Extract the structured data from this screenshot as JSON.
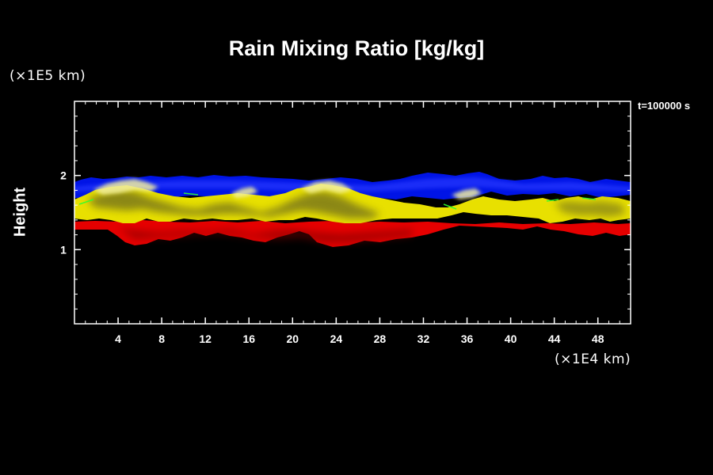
{
  "chart_data": {
    "type": "heatmap",
    "title": "Rain Mixing Ratio [kg/kg]",
    "ylabel": "Height",
    "x_unit_label": "(×1E4 km)",
    "y_unit_label": "(×1E5 km)",
    "time_label": "t=100000 s",
    "xlim": [
      0,
      51
    ],
    "ylim": [
      0,
      3
    ],
    "x_ticks": [
      4,
      8,
      12,
      16,
      20,
      24,
      28,
      32,
      36,
      40,
      44,
      48
    ],
    "y_ticks": [
      1,
      2
    ],
    "x_tick_labels": [
      "4",
      "8",
      "12",
      "16",
      "20",
      "24",
      "28",
      "32",
      "36",
      "40",
      "44",
      "48"
    ],
    "y_tick_labels": [
      "1",
      "2"
    ],
    "layers": [
      {
        "color": "#0000ff",
        "x": [
          0,
          51
        ],
        "y_range": [
          1.75,
          2.05
        ]
      },
      {
        "color": "#ffff00",
        "x": [
          0,
          51
        ],
        "y_range": [
          1.35,
          1.75
        ]
      },
      {
        "color": "#ff0000",
        "x": [
          0,
          51
        ],
        "y_range": [
          1.05,
          1.4
        ]
      }
    ],
    "grid": false
  }
}
